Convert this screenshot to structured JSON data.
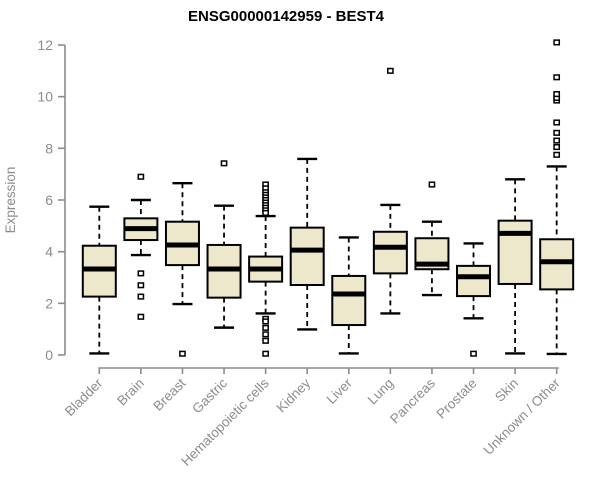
{
  "page": {
    "background": "#ffffff"
  },
  "chart_data": {
    "type": "boxplot",
    "title": "ENSG00000142959 - BEST4",
    "ylabel": "Expression",
    "xlabel": "",
    "ylim": [
      0,
      12
    ],
    "yticks": [
      0,
      2,
      4,
      6,
      8,
      10,
      12
    ],
    "grid": false,
    "legend": "none",
    "axis_color": "#8c8c8c",
    "box_fill": "#ede7cc",
    "box_stroke": "#000000",
    "median_color": "#000000",
    "categories": [
      "Bladder",
      "Brain",
      "Breast",
      "Gastric",
      "Hematopoietic cells",
      "Kidney",
      "Liver",
      "Lung",
      "Pancreas",
      "Prostate",
      "Skin",
      "Unknown / Other"
    ],
    "series": [
      {
        "name": "Bladder",
        "whisker_low": 0.06,
        "q1": 2.26,
        "median": 3.33,
        "q3": 4.23,
        "whisker_high": 5.74,
        "outliers": []
      },
      {
        "name": "Brain",
        "whisker_low": 3.87,
        "q1": 4.45,
        "median": 4.89,
        "q3": 5.29,
        "whisker_high": 6.0,
        "outliers": [
          6.9,
          3.16,
          2.7,
          2.26,
          1.48
        ]
      },
      {
        "name": "Breast",
        "whisker_low": 1.97,
        "q1": 3.48,
        "median": 4.26,
        "q3": 5.16,
        "whisker_high": 6.65,
        "outliers": [
          0.05
        ]
      },
      {
        "name": "Gastric",
        "whisker_low": 1.06,
        "q1": 2.22,
        "median": 3.33,
        "q3": 4.26,
        "whisker_high": 5.78,
        "outliers": [
          7.42
        ]
      },
      {
        "name": "Hematopoietic cells",
        "whisker_low": 1.61,
        "q1": 2.84,
        "median": 3.33,
        "q3": 3.81,
        "whisker_high": 5.38,
        "outliers": [
          6.6,
          6.45,
          6.3,
          6.2,
          6.1,
          6.0,
          5.9,
          5.8,
          5.7,
          5.6,
          5.5,
          1.4,
          1.3,
          1.05,
          0.8,
          0.55,
          0.05
        ]
      },
      {
        "name": "Kidney",
        "whisker_low": 0.99,
        "q1": 2.71,
        "median": 4.06,
        "q3": 4.93,
        "whisker_high": 7.59,
        "outliers": []
      },
      {
        "name": "Liver",
        "whisker_low": 0.06,
        "q1": 1.16,
        "median": 2.36,
        "q3": 3.06,
        "whisker_high": 4.55,
        "outliers": []
      },
      {
        "name": "Lung",
        "whisker_low": 1.61,
        "q1": 3.16,
        "median": 4.17,
        "q3": 4.77,
        "whisker_high": 5.81,
        "outliers": [
          11.0
        ]
      },
      {
        "name": "Pancreas",
        "whisker_low": 2.32,
        "q1": 3.32,
        "median": 3.52,
        "q3": 4.52,
        "whisker_high": 5.16,
        "outliers": [
          6.6
        ]
      },
      {
        "name": "Prostate",
        "whisker_low": 1.42,
        "q1": 2.28,
        "median": 3.03,
        "q3": 3.45,
        "whisker_high": 4.32,
        "outliers": [
          0.05
        ]
      },
      {
        "name": "Skin",
        "whisker_low": 0.06,
        "q1": 2.75,
        "median": 4.71,
        "q3": 5.2,
        "whisker_high": 6.8,
        "outliers": []
      },
      {
        "name": "Unknown / Other",
        "whisker_low": 0.04,
        "q1": 2.54,
        "median": 3.61,
        "q3": 4.48,
        "whisker_high": 7.3,
        "outliers": [
          7.75,
          8.05,
          8.3,
          8.6,
          9.0,
          9.85,
          9.95,
          10.1,
          10.75,
          12.1
        ]
      }
    ]
  }
}
